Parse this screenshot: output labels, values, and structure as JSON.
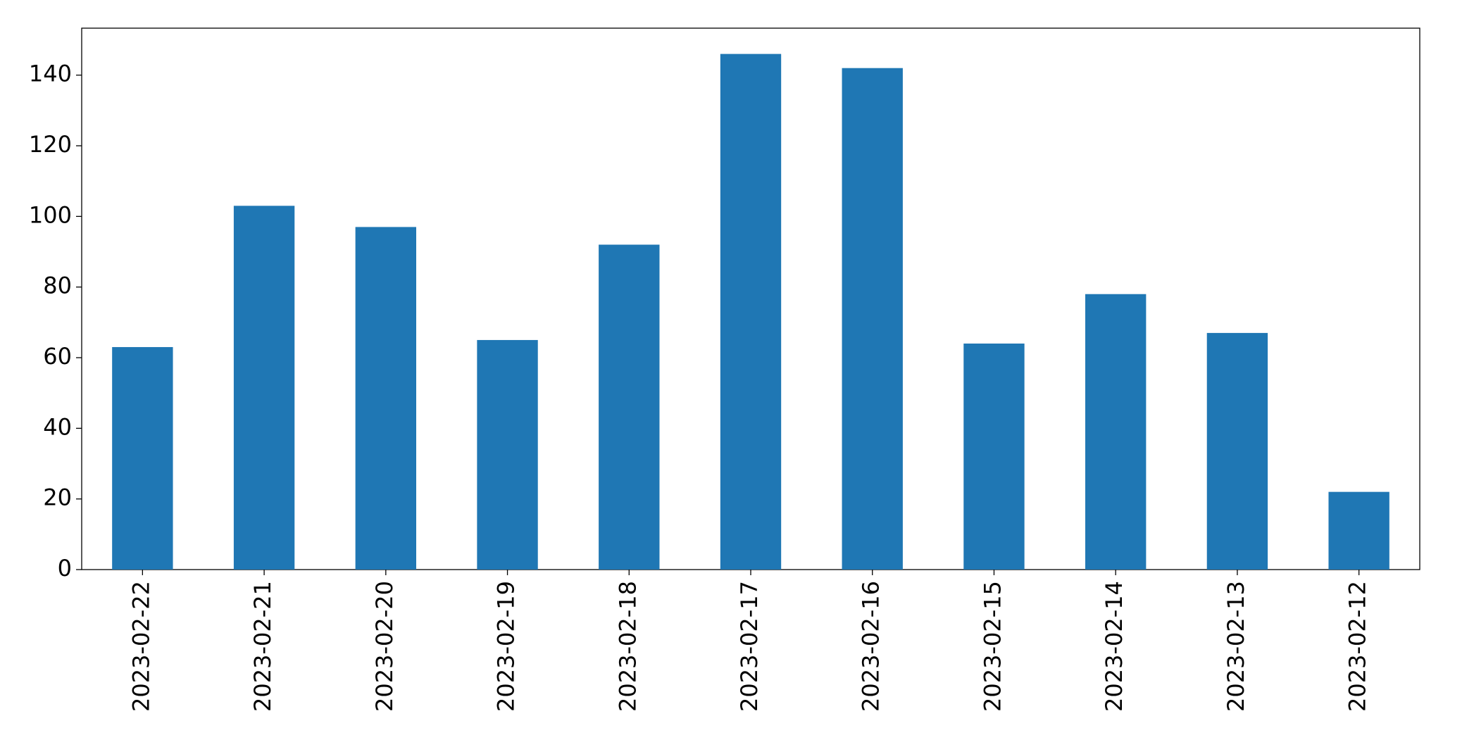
{
  "chart_data": {
    "type": "bar",
    "categories": [
      "2023-02-22",
      "2023-02-21",
      "2023-02-20",
      "2023-02-19",
      "2023-02-18",
      "2023-02-17",
      "2023-02-16",
      "2023-02-15",
      "2023-02-14",
      "2023-02-13",
      "2023-02-12"
    ],
    "values": [
      63,
      103,
      97,
      65,
      92,
      146,
      142,
      64,
      78,
      67,
      22
    ],
    "color": "#1f77b4",
    "ylim": [
      0,
      153.3
    ],
    "yticks": [
      0,
      20,
      40,
      60,
      80,
      100,
      120,
      140
    ],
    "grid": false
  }
}
